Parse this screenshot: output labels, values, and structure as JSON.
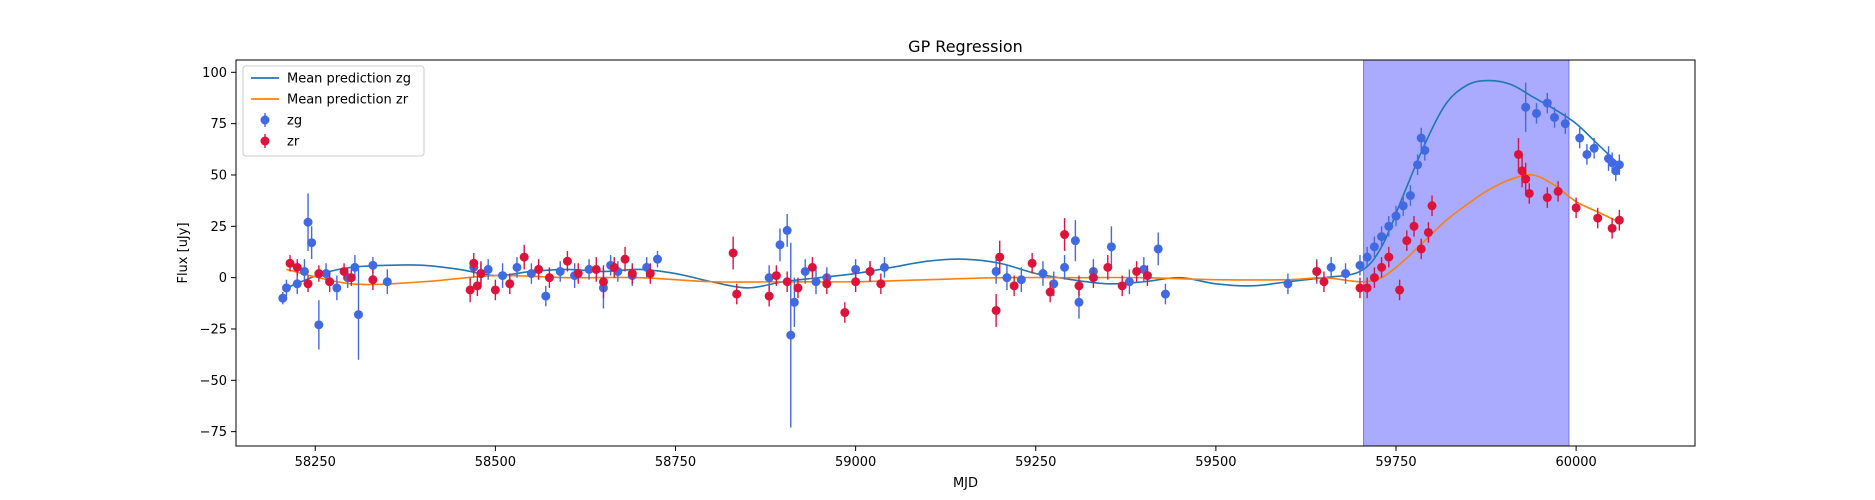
{
  "chart_data": {
    "type": "scatter",
    "title": "GP Regression",
    "xlabel": "MJD",
    "ylabel": "Flux [uJy]",
    "xlim": [
      58140,
      60165
    ],
    "ylim": [
      -82,
      106
    ],
    "xticks": [
      58250,
      58500,
      58750,
      59000,
      59250,
      59500,
      59750,
      60000
    ],
    "xtick_labels": [
      "58250",
      "58500",
      "58750",
      "59000",
      "59250",
      "59500",
      "59750",
      "60000"
    ],
    "yticks": [
      -75,
      -50,
      -25,
      0,
      25,
      50,
      75,
      100
    ],
    "ytick_labels": [
      "−75",
      "−50",
      "−25",
      "0",
      "25",
      "50",
      "75",
      "100"
    ],
    "grid": false,
    "legend_position": "top-left",
    "shaded_region": {
      "x_start": 59705,
      "x_end": 59990,
      "color": "#aaaaff"
    },
    "colors": {
      "zg_line": "#1f77b4",
      "zr_line": "#ff7f0e",
      "zg_points": "#4169e1",
      "zr_points": "#dc143c",
      "shade_edge": "#7777ee"
    },
    "legend": [
      {
        "label": "Mean prediction zg",
        "kind": "line",
        "color": "#1f77b4"
      },
      {
        "label": "Mean prediction zr",
        "kind": "line",
        "color": "#ff7f0e"
      },
      {
        "label": "zg",
        "kind": "marker",
        "color": "#4169e1"
      },
      {
        "label": "zr",
        "kind": "marker",
        "color": "#dc143c"
      }
    ],
    "series": [
      {
        "name": "Mean prediction zg",
        "kind": "line",
        "x": [
          58210,
          58260,
          58300,
          58350,
          58400,
          58450,
          58500,
          58550,
          58600,
          58650,
          58700,
          58750,
          58800,
          58850,
          58900,
          58950,
          59000,
          59050,
          59100,
          59150,
          59200,
          59250,
          59300,
          59350,
          59400,
          59450,
          59500,
          59550,
          59600,
          59650,
          59700,
          59730,
          59760,
          59790,
          59820,
          59850,
          59880,
          59910,
          59940,
          59970,
          60000,
          60030,
          60060
        ],
        "y": [
          -5,
          2,
          5,
          6,
          6,
          4,
          1,
          3,
          4,
          3,
          4,
          2,
          -2,
          -5,
          -2,
          0,
          2,
          5,
          8,
          9,
          7,
          2,
          -1,
          -3,
          -2,
          0,
          -3,
          -4,
          -2,
          0,
          3,
          15,
          40,
          65,
          85,
          94,
          96,
          94,
          88,
          82,
          75,
          65,
          55
        ]
      },
      {
        "name": "Mean prediction zr",
        "kind": "line",
        "x": [
          58210,
          58300,
          58400,
          58500,
          58600,
          58700,
          58800,
          58900,
          59000,
          59100,
          59200,
          59300,
          59400,
          59500,
          59600,
          59650,
          59700,
          59730,
          59760,
          59790,
          59820,
          59850,
          59880,
          59910,
          59940,
          59970,
          60000,
          60030,
          60060
        ],
        "y": [
          4,
          -3,
          -2,
          1,
          0,
          0,
          -2,
          -2,
          -2,
          -1,
          0,
          0,
          0,
          -1,
          -1,
          0,
          -2,
          0,
          8,
          18,
          28,
          36,
          43,
          48,
          50,
          45,
          37,
          32,
          27
        ]
      },
      {
        "name": "zg",
        "kind": "errorbar",
        "x": [
          58205,
          58210,
          58225,
          58235,
          58240,
          58245,
          58255,
          58265,
          58280,
          58295,
          58305,
          58310,
          58330,
          58350,
          58470,
          58480,
          58490,
          58510,
          58530,
          58550,
          58570,
          58590,
          58610,
          58630,
          58650,
          58660,
          58670,
          58690,
          58710,
          58725,
          58880,
          58895,
          58905,
          58910,
          58915,
          58930,
          58945,
          58960,
          59000,
          59020,
          59040,
          59195,
          59210,
          59230,
          59260,
          59275,
          59290,
          59305,
          59310,
          59330,
          59355,
          59380,
          59400,
          59420,
          59430,
          59600,
          59640,
          59660,
          59680,
          59700,
          59710,
          59720,
          59730,
          59740,
          59750,
          59760,
          59770,
          59780,
          59785,
          59790,
          59930,
          59945,
          59960,
          59970,
          59985,
          60005,
          60015,
          60025,
          60045,
          60050,
          60055,
          60060
        ],
        "y": [
          -10,
          -5,
          -3,
          3,
          27,
          17,
          -23,
          2,
          -5,
          0,
          5,
          -18,
          6,
          -2,
          5,
          2,
          4,
          1,
          5,
          2,
          -9,
          3,
          1,
          4,
          -5,
          6,
          3,
          1,
          5,
          9,
          0,
          16,
          23,
          -28,
          -12,
          3,
          -2,
          0,
          4,
          3,
          5,
          3,
          0,
          -1,
          2,
          -3,
          5,
          18,
          -12,
          3,
          15,
          -2,
          4,
          14,
          -8,
          -3,
          3,
          5,
          2,
          6,
          10,
          15,
          20,
          25,
          30,
          35,
          40,
          55,
          68,
          62,
          83,
          80,
          85,
          78,
          75,
          68,
          60,
          63,
          58,
          56,
          52,
          55
        ],
        "yerr": [
          3,
          4,
          5,
          6,
          14,
          8,
          12,
          5,
          6,
          5,
          6,
          22,
          4,
          6,
          5,
          5,
          5,
          6,
          5,
          5,
          5,
          5,
          6,
          5,
          10,
          5,
          5,
          5,
          5,
          4,
          6,
          8,
          8,
          45,
          12,
          6,
          6,
          5,
          5,
          5,
          5,
          6,
          6,
          6,
          6,
          6,
          6,
          10,
          8,
          6,
          10,
          6,
          6,
          8,
          5,
          5,
          6,
          5,
          5,
          5,
          5,
          5,
          5,
          5,
          5,
          5,
          5,
          5,
          5,
          5,
          12,
          5,
          5,
          5,
          5,
          5,
          5,
          5,
          6,
          5,
          5,
          5
        ]
      },
      {
        "name": "zr",
        "kind": "errorbar",
        "x": [
          58215,
          58225,
          58240,
          58255,
          58270,
          58290,
          58300,
          58330,
          58465,
          58470,
          58475,
          58480,
          58500,
          58520,
          58540,
          58560,
          58575,
          58600,
          58615,
          58640,
          58650,
          58665,
          58680,
          58690,
          58715,
          58830,
          58835,
          58880,
          58890,
          58905,
          58920,
          58940,
          58960,
          58985,
          59000,
          59020,
          59035,
          59195,
          59200,
          59220,
          59245,
          59270,
          59290,
          59310,
          59330,
          59350,
          59370,
          59390,
          59405,
          59640,
          59650,
          59700,
          59710,
          59720,
          59730,
          59740,
          59755,
          59765,
          59775,
          59785,
          59795,
          59800,
          59920,
          59925,
          59930,
          59935,
          59960,
          59975,
          60000,
          60030,
          60050,
          60060
        ],
        "y": [
          7,
          5,
          -3,
          2,
          -2,
          3,
          0,
          -1,
          -6,
          7,
          -4,
          2,
          -6,
          -3,
          10,
          4,
          0,
          8,
          2,
          4,
          -2,
          5,
          9,
          2,
          2,
          12,
          -8,
          -9,
          1,
          -2,
          -5,
          5,
          -3,
          -17,
          -2,
          3,
          -3,
          -16,
          10,
          -4,
          7,
          -7,
          21,
          -4,
          0,
          5,
          -4,
          3,
          1,
          3,
          -2,
          -5,
          -5,
          0,
          5,
          10,
          -6,
          18,
          25,
          14,
          22,
          35,
          60,
          52,
          48,
          41,
          39,
          42,
          34,
          29,
          24,
          28
        ],
        "yerr": [
          4,
          4,
          4,
          4,
          5,
          4,
          4,
          5,
          6,
          5,
          5,
          6,
          5,
          5,
          6,
          5,
          5,
          5,
          5,
          6,
          8,
          5,
          6,
          5,
          5,
          8,
          5,
          5,
          5,
          5,
          5,
          5,
          5,
          5,
          5,
          5,
          5,
          8,
          8,
          5,
          5,
          5,
          8,
          5,
          5,
          6,
          5,
          5,
          5,
          5,
          5,
          5,
          5,
          5,
          5,
          5,
          5,
          5,
          5,
          5,
          5,
          5,
          8,
          8,
          8,
          5,
          5,
          5,
          5,
          5,
          5,
          5
        ]
      }
    ]
  }
}
